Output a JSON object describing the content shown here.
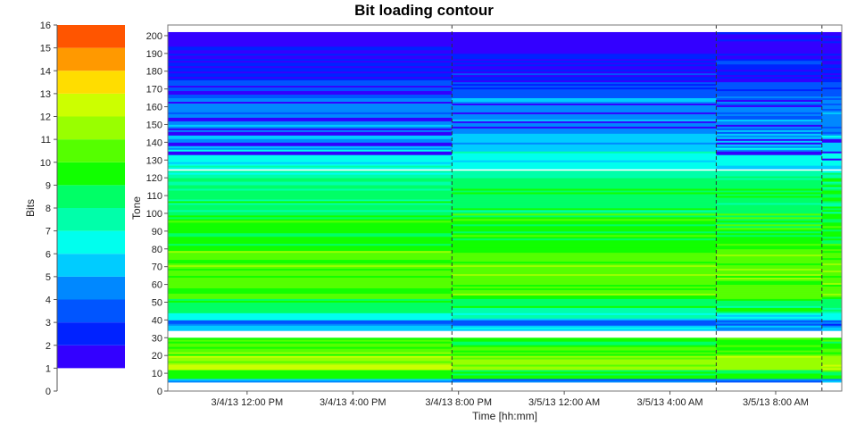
{
  "chart_data": [
    {
      "type": "bar",
      "role": "legend-colorbar",
      "ylabel": "Bits",
      "ylim": [
        0,
        16
      ],
      "yticks": [
        "0",
        "1",
        "2",
        "3",
        "4",
        "5",
        "6",
        "7",
        "8",
        "9",
        "10",
        "11",
        "12",
        "13",
        "14",
        "15",
        "16"
      ],
      "levels": [
        1,
        2,
        3,
        4,
        5,
        6,
        7,
        8,
        9,
        10,
        11,
        12,
        13,
        14,
        15
      ],
      "colors": [
        "#3300ff",
        "#0022ff",
        "#0055ff",
        "#0088ff",
        "#00ccff",
        "#00ffee",
        "#00ffaa",
        "#00ff66",
        "#11ff00",
        "#55ff00",
        "#99ff00",
        "#ccff00",
        "#ffdd00",
        "#ff9900",
        "#ff5500"
      ]
    },
    {
      "type": "heatmap",
      "title": "Bit loading contour",
      "xlabel": "Time [hh:mm]",
      "ylabel": "Tone",
      "xlim": [
        "3/4/13 9:00 AM",
        "3/5/13 10:30 AM"
      ],
      "ylim": [
        0,
        206
      ],
      "xticks": [
        "3/4/13 12:00 PM",
        "3/4/13 4:00 PM",
        "3/4/13 8:00 PM",
        "3/5/13 12:00 AM",
        "3/5/13 4:00 AM",
        "3/5/13 8:00 AM"
      ],
      "yticks": [
        "0",
        "10",
        "20",
        "30",
        "40",
        "50",
        "60",
        "70",
        "80",
        "90",
        "100",
        "110",
        "120",
        "130",
        "140",
        "150",
        "160",
        "170",
        "180",
        "190",
        "200"
      ],
      "segments": [
        {
          "start": "3/4/13 9:00 AM",
          "end": "3/4/13 7:45 PM"
        },
        {
          "start": "3/4/13 7:45 PM",
          "end": "3/5/13 5:45 AM"
        },
        {
          "start": "3/5/13 5:45 AM",
          "end": "3/5/13 9:45 AM"
        },
        {
          "start": "3/5/13 9:45 AM",
          "end": "3/5/13 10:30 AM"
        }
      ],
      "tone_bits": [
        {
          "tones": [
            0,
            5
          ],
          "bits": 0
        },
        {
          "tones": [
            5,
            7
          ],
          "bits": 4
        },
        {
          "tones": [
            7,
            12
          ],
          "bits": 9
        },
        {
          "tones": [
            12,
            20
          ],
          "bits": 11
        },
        {
          "tones": [
            20,
            26
          ],
          "bits": 10
        },
        {
          "tones": [
            26,
            30
          ],
          "bits": 9
        },
        {
          "tones": [
            30,
            34
          ],
          "bits": 0
        },
        {
          "tones": [
            34,
            37
          ],
          "bits": 5
        },
        {
          "tones": [
            37,
            40
          ],
          "bits": 3
        },
        {
          "tones": [
            40,
            44
          ],
          "bits": 6
        },
        {
          "tones": [
            44,
            52
          ],
          "bits": 8
        },
        {
          "tones": [
            52,
            66
          ],
          "bits": 10
        },
        {
          "tones": [
            66,
            80
          ],
          "bits": 10
        },
        {
          "tones": [
            80,
            100
          ],
          "bits": 9
        },
        {
          "tones": [
            100,
            120
          ],
          "bits": 8
        },
        {
          "tones": [
            120,
            125
          ],
          "bits": 7
        },
        {
          "tones": [
            125,
            135
          ],
          "bits": 6
        },
        {
          "tones": [
            135,
            145
          ],
          "bits": 5
        },
        {
          "tones": [
            145,
            155
          ],
          "bits": 4
        },
        {
          "tones": [
            155,
            165
          ],
          "bits": 4
        },
        {
          "tones": [
            165,
            175
          ],
          "bits": 3
        },
        {
          "tones": [
            175,
            190
          ],
          "bits": 2
        },
        {
          "tones": [
            190,
            202
          ],
          "bits": 1
        }
      ],
      "blank_tones": [
        30,
        31,
        32,
        33,
        124
      ]
    }
  ]
}
